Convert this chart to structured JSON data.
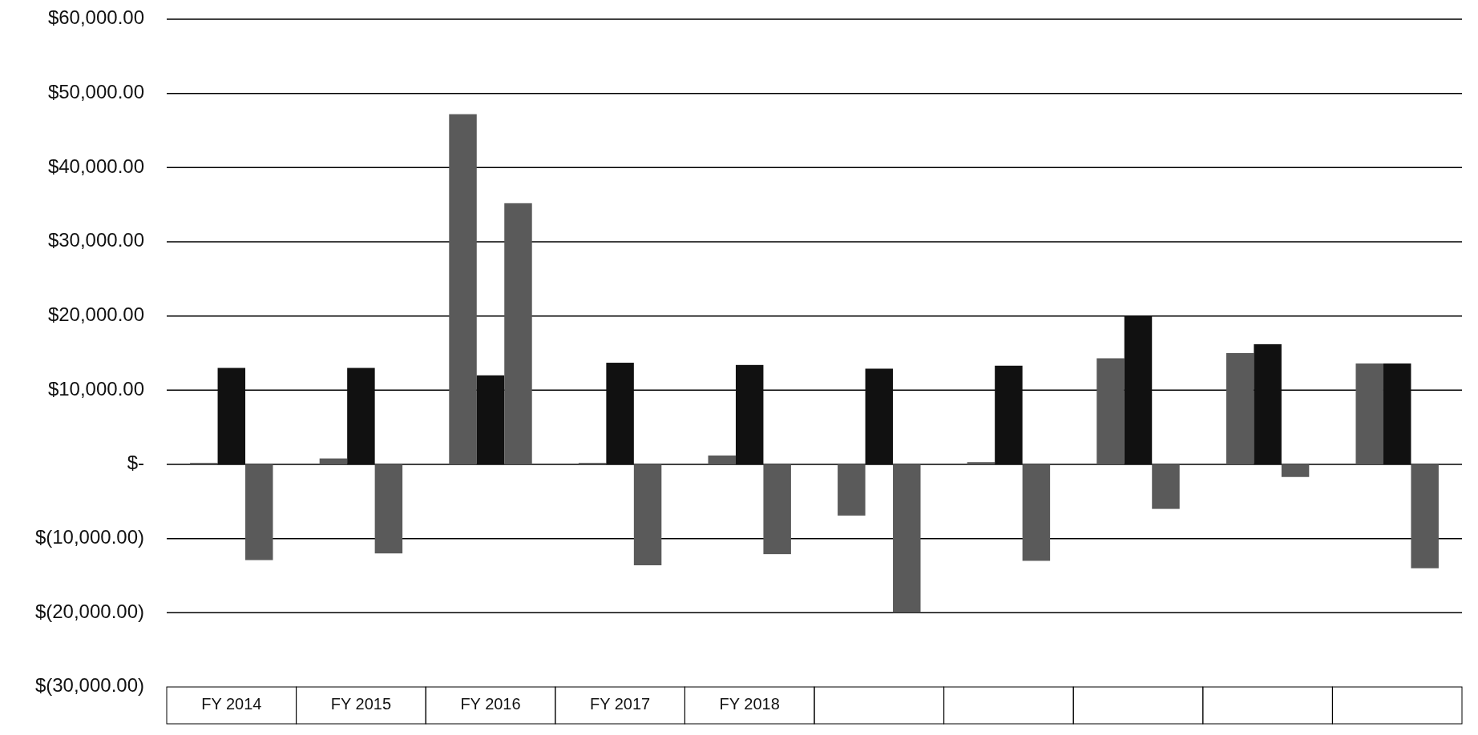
{
  "chart_data": {
    "type": "bar",
    "categories": [
      "FY 2014",
      "FY 2015",
      "FY 2016",
      "FY 2017",
      "FY 2018",
      null,
      null,
      null,
      null,
      null
    ],
    "series": [
      {
        "color": "#5a5a5a",
        "values": [
          200,
          800,
          47200,
          200,
          1200,
          -6900,
          300,
          14300,
          15000,
          13600
        ]
      },
      {
        "color": "#111111",
        "values": [
          13000,
          13000,
          12000,
          13700,
          13400,
          12900,
          13300,
          20000,
          16200,
          13600
        ]
      },
      {
        "color": "#5a5a5a",
        "values": [
          -12900,
          -12000,
          35200,
          -13600,
          -12100,
          -20000,
          -13000,
          -6000,
          -1700,
          -14000
        ]
      }
    ],
    "ylim": [
      -30000,
      60000
    ],
    "yticks": [
      {
        "value": -30000,
        "label": "$(30,000.00)"
      },
      {
        "value": -20000,
        "label": "$(20,000.00)"
      },
      {
        "value": -10000,
        "label": "$(10,000.00)"
      },
      {
        "value": 0,
        "label": "$-"
      },
      {
        "value": 10000,
        "label": "$10,000.00"
      },
      {
        "value": 20000,
        "label": "$20,000.00"
      },
      {
        "value": 30000,
        "label": "$30,000.00"
      },
      {
        "value": 40000,
        "label": "$40,000.00"
      },
      {
        "value": 50000,
        "label": "$50,000.00"
      },
      {
        "value": 60000,
        "label": "$60,000.00"
      }
    ],
    "grid": "y"
  }
}
